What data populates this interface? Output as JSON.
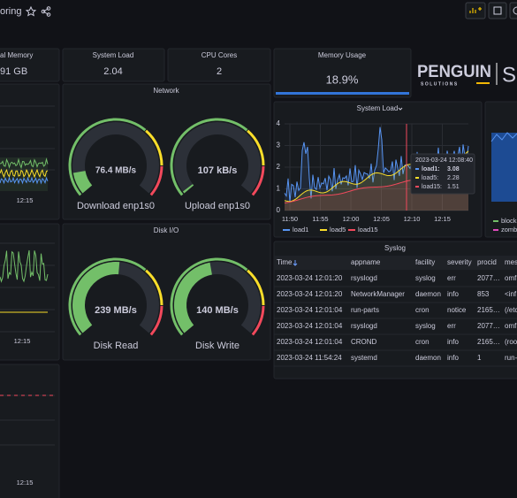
{
  "header": {
    "title": "oring"
  },
  "stats": [
    {
      "label": "al Memory",
      "value": "91 GB"
    },
    {
      "label": "System Load",
      "value": "2.04"
    },
    {
      "label": "CPU Cores",
      "value": "2"
    }
  ],
  "memory_usage": {
    "label": "Memory Usage",
    "value": "18.9%"
  },
  "logo": {
    "name": "PENGUIN",
    "tagline": "SOLUTIONS",
    "suffix": "Sc"
  },
  "network": {
    "title": "Network",
    "gauges": [
      {
        "value": "76.4 MB/s",
        "label": "Download enp1s0"
      },
      {
        "value": "107 kB/s",
        "label": "Upload enp1s0"
      }
    ]
  },
  "disk_io": {
    "title": "Disk I/O",
    "gauges": [
      {
        "value": "239 MB/s",
        "label": "Disk Read"
      },
      {
        "value": "140 MB/s",
        "label": "Disk Write"
      }
    ]
  },
  "system_load": {
    "title": "System Load",
    "yticks": [
      0,
      1,
      2,
      3,
      4
    ],
    "xticks": [
      "11:50",
      "11:55",
      "12:00",
      "12:05",
      "12:10",
      "12:15"
    ],
    "tooltip": {
      "time": "2023-03-24 12:08:40",
      "items": [
        {
          "name": "load1:",
          "value": "3.08"
        },
        {
          "name": "load5:",
          "value": "2.28"
        },
        {
          "name": "load15:",
          "value": "1.51"
        }
      ]
    },
    "legend": [
      "load1",
      "load5",
      "load15"
    ]
  },
  "syslog": {
    "title": "Syslog",
    "columns": [
      "Time",
      "appname",
      "facility",
      "severity",
      "procid",
      "mes"
    ],
    "rows": [
      [
        "2023-03-24 12:01:20",
        "rsyslogd",
        "syslog",
        "err",
        "2077…",
        "omf"
      ],
      [
        "2023-03-24 12:01:20",
        "NetworkManager",
        "daemon",
        "info",
        "853",
        "<inf"
      ],
      [
        "2023-03-24 12:01:04",
        "run-parts",
        "cron",
        "notice",
        "2165…",
        "(/etc"
      ],
      [
        "2023-03-24 12:01:04",
        "rsyslogd",
        "syslog",
        "err",
        "2077…",
        "omf"
      ],
      [
        "2023-03-24 12:01:04",
        "CROND",
        "cron",
        "info",
        "2165…",
        "(root"
      ],
      [
        "2023-03-24 11:54:24",
        "systemd",
        "daemon",
        "info",
        "1",
        "run-"
      ]
    ]
  },
  "side_panels": {
    "xticks": [
      "12:15",
      "12:15",
      "12:15"
    ]
  },
  "right_panel": {
    "legend": [
      "block",
      "zomb"
    ]
  }
}
